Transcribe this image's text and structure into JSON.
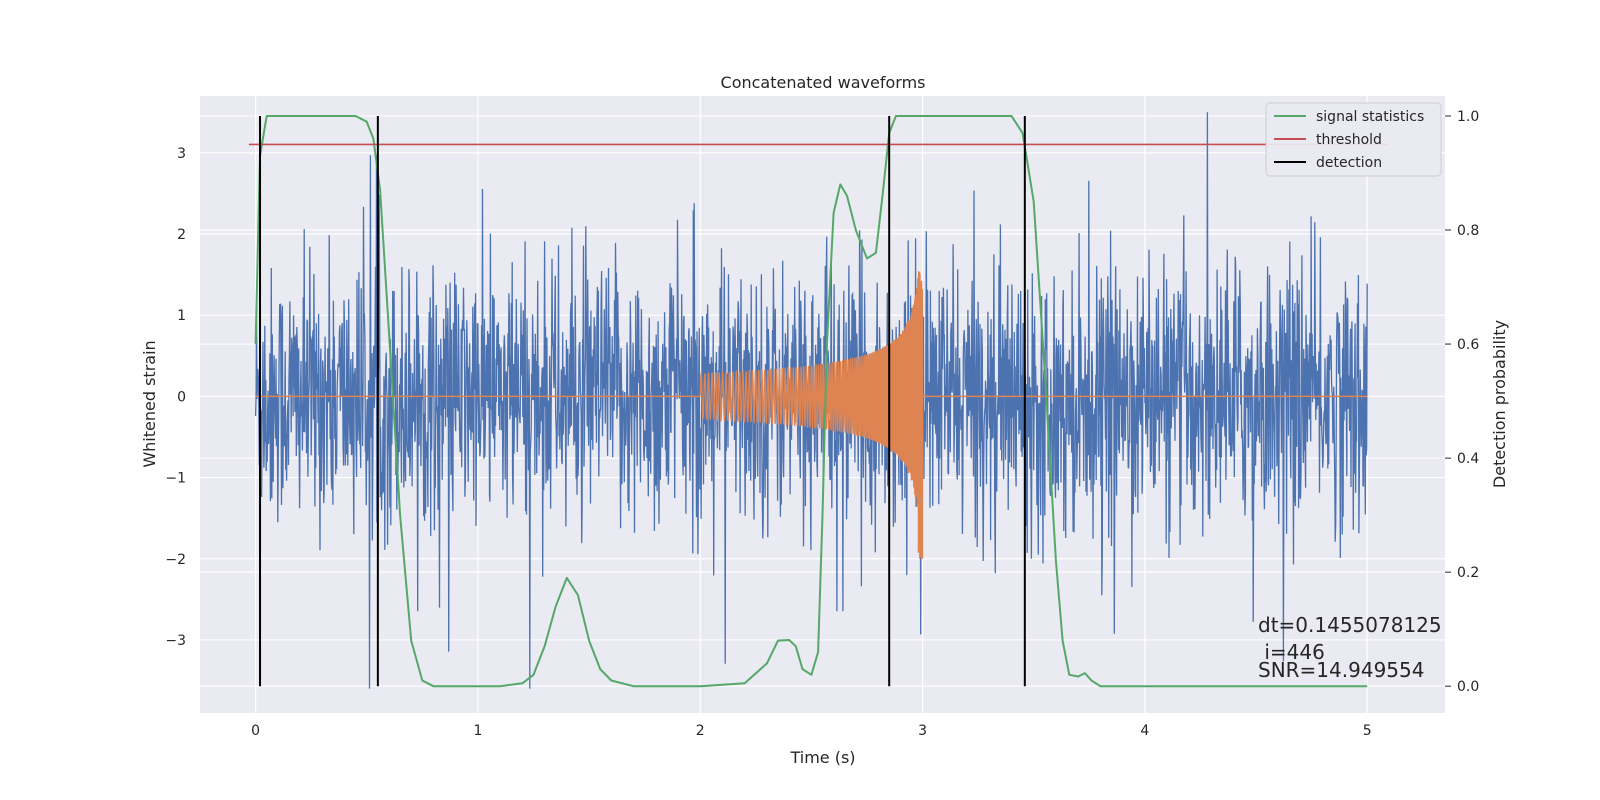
{
  "chart_data": {
    "type": "line",
    "title": "Concatenated waveforms",
    "xlabel": "Time (s)",
    "ylabel": "Whitened strain",
    "ylabel_right": "Detection probability",
    "xlim": [
      -0.25,
      5.35
    ],
    "ylim": [
      -3.9,
      3.7
    ],
    "ylim_right": [
      -0.047,
      1.035
    ],
    "x_ticks": [
      0,
      1,
      2,
      3,
      4,
      5
    ],
    "y_ticks": [
      -3,
      -2,
      -1,
      0,
      1,
      2,
      3
    ],
    "y_ticks_right": [
      0.0,
      0.2,
      0.4,
      0.6,
      0.8,
      1.0
    ],
    "x_tick_labels": [
      "0",
      "1",
      "2",
      "3",
      "4",
      "5"
    ],
    "y_tick_labels": [
      "−3",
      "−2",
      "−1",
      "0",
      "1",
      "2",
      "3"
    ],
    "y_tick_labels_right": [
      "0.0",
      "0.2",
      "0.4",
      "0.6",
      "0.8",
      "1.0"
    ],
    "grid": true,
    "legend_position": "top-right",
    "noise": {
      "x_range": [
        0,
        5
      ],
      "approx_envelope": [
        -3.6,
        3.5
      ],
      "color": "#4c72b0"
    },
    "chirp": {
      "t_start": 2.0,
      "t_end": 3.0,
      "amplitude_start": 0.28,
      "amplitude_peak": 1.6,
      "amplitude_peak_negative": -2.0,
      "color": "#dd8452"
    },
    "series": [
      {
        "name": "signal statistics",
        "axis": "right",
        "color": "#55a868",
        "x": [
          0.0,
          0.02,
          0.05,
          0.1,
          0.45,
          0.5,
          0.53,
          0.56,
          0.6,
          0.65,
          0.7,
          0.75,
          0.8,
          0.9,
          1.0,
          1.1,
          1.2,
          1.25,
          1.3,
          1.35,
          1.4,
          1.45,
          1.5,
          1.55,
          1.6,
          1.7,
          1.8,
          2.0,
          2.2,
          2.3,
          2.35,
          2.4,
          2.43,
          2.46,
          2.5,
          2.53,
          2.55,
          2.57,
          2.6,
          2.63,
          2.66,
          2.7,
          2.75,
          2.79,
          2.82,
          2.85,
          2.88,
          2.92,
          3.0,
          3.4,
          3.45,
          3.5,
          3.55,
          3.6,
          3.63,
          3.66,
          3.7,
          3.73,
          3.76,
          3.8,
          4.0,
          4.5,
          5.0
        ],
        "y": [
          0.6,
          0.93,
          1.0,
          1.0,
          1.0,
          0.99,
          0.96,
          0.87,
          0.62,
          0.3,
          0.08,
          0.01,
          0.0,
          0.0,
          0.0,
          0.0,
          0.005,
          0.02,
          0.07,
          0.14,
          0.19,
          0.16,
          0.08,
          0.03,
          0.01,
          0.0,
          0.0,
          0.0,
          0.005,
          0.04,
          0.08,
          0.081,
          0.07,
          0.03,
          0.02,
          0.06,
          0.3,
          0.6,
          0.83,
          0.88,
          0.86,
          0.8,
          0.75,
          0.76,
          0.86,
          0.97,
          1.0,
          1.0,
          1.0,
          1.0,
          0.97,
          0.85,
          0.55,
          0.22,
          0.08,
          0.02,
          0.017,
          0.023,
          0.01,
          0.0,
          0.0,
          0.0,
          0.0
        ]
      },
      {
        "name": "threshold",
        "axis": "right",
        "color": "#c44e52",
        "x": [
          -0.03,
          5.1
        ],
        "y": [
          0.95,
          0.95
        ]
      },
      {
        "name": "detection",
        "axis": "right",
        "color": "#000000",
        "x": [
          0.02,
          0.55,
          2.85,
          3.46
        ],
        "y_range": [
          0.0,
          1.0
        ]
      }
    ],
    "annotations": [
      "dt=0.1455078125",
      " i=446",
      "SNR=14.949554"
    ]
  }
}
